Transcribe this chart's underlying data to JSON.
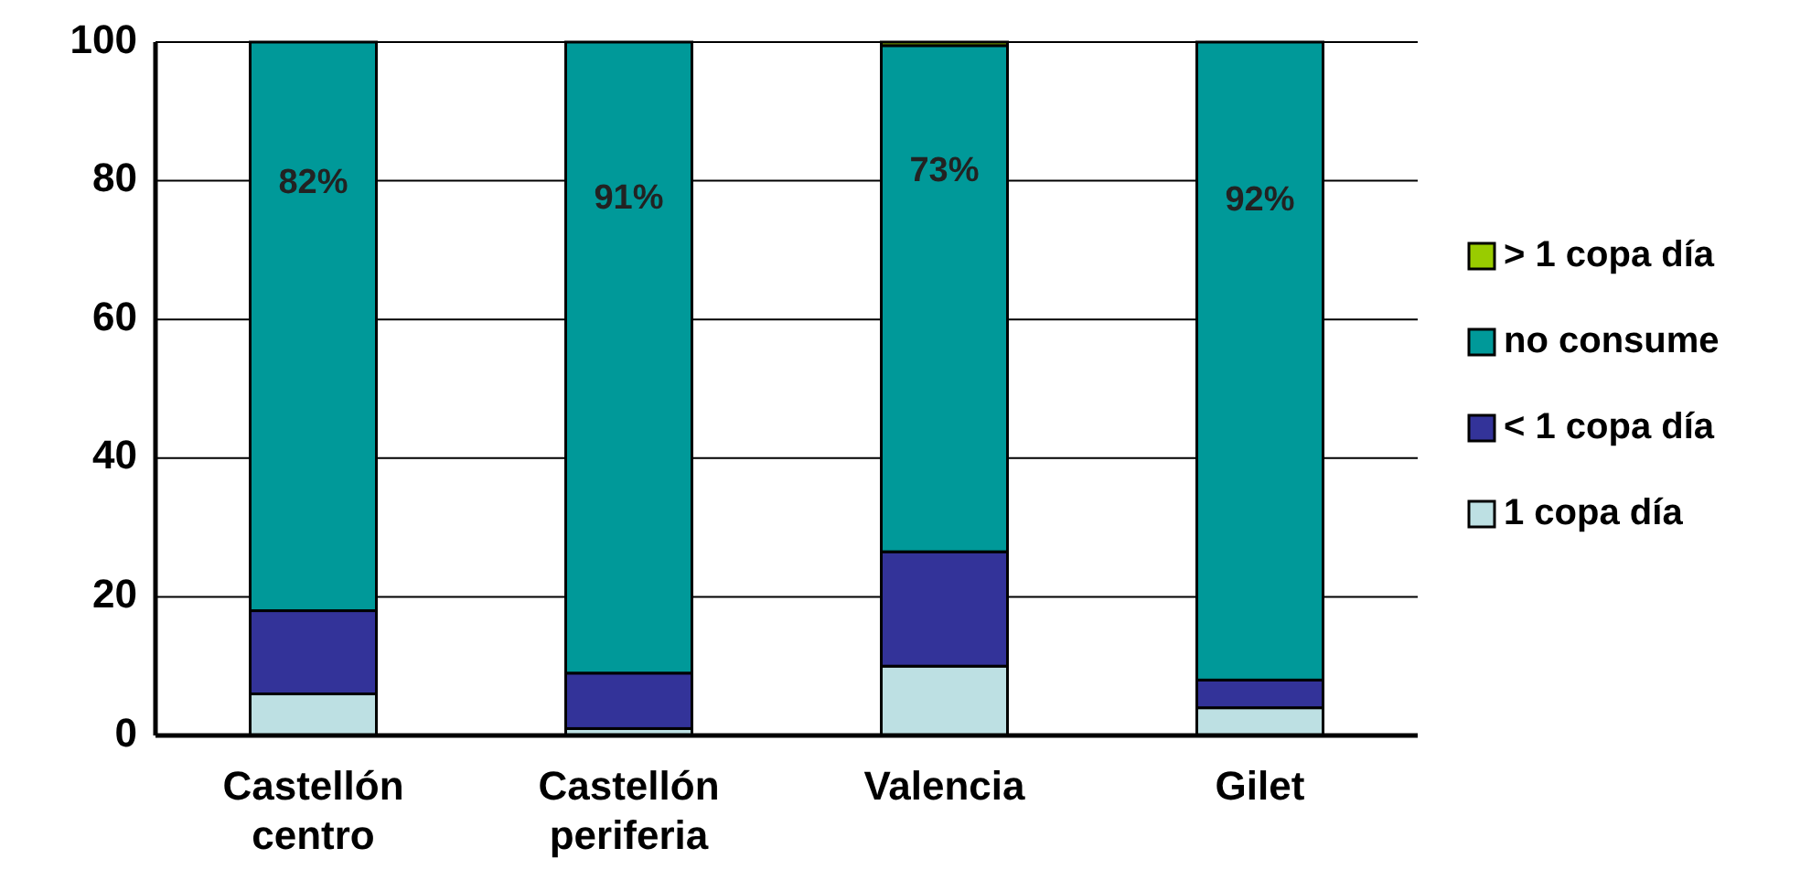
{
  "chart_data": {
    "type": "bar",
    "stacked": true,
    "categories": [
      "Castellón centro",
      "Castellón periferia",
      "Valencia",
      "Gilet"
    ],
    "series": [
      {
        "name": "1 copa día",
        "color": "#bde0e3",
        "values": [
          6,
          1,
          10,
          4
        ]
      },
      {
        "name": "< 1 copa día",
        "color": "#333399",
        "values": [
          12,
          8,
          16.5,
          4
        ]
      },
      {
        "name": "no consume",
        "color": "#009999",
        "values": [
          82,
          91,
          73,
          92
        ],
        "value_labels": [
          "82%",
          "91%",
          "73%",
          "92%"
        ]
      },
      {
        "name": "> 1 copa día",
        "color": "#99cc00",
        "values": [
          0,
          0,
          0.5,
          0
        ]
      }
    ],
    "ylim": [
      0,
      100
    ],
    "yticks": [
      0,
      20,
      40,
      60,
      80,
      100
    ],
    "grid": "y",
    "legend": "right"
  }
}
